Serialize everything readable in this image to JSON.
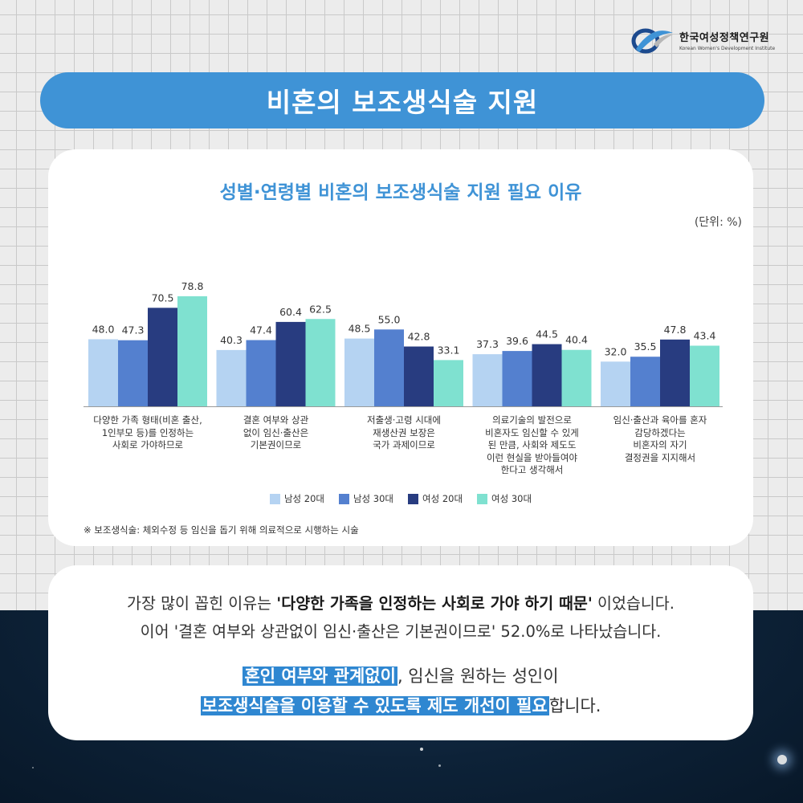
{
  "header": {
    "org_name_ko": "한국여성정책연구원",
    "org_name_en": "Korean Women's Development Institute",
    "banner_title": "비혼의 보조생식술 지원"
  },
  "chart_data": {
    "type": "bar",
    "title": "성별·연령별 비혼의 보조생식술 지원 필요 이유",
    "unit_label": "(단위: %)",
    "xlabel": "",
    "ylabel": "",
    "ylim": [
      0,
      100
    ],
    "grid": false,
    "legend_position": "bottom",
    "categories": [
      [
        "다양한 가족 형태(비혼 출산,",
        "1인부모 등)를 인정하는",
        "사회로 가야하므로"
      ],
      [
        "결혼 여부와 상관",
        "없이 임신·출산은",
        "기본권이므로"
      ],
      [
        "저출생·고령 시대에",
        "재생산권 보장은",
        "국가 과제이므로"
      ],
      [
        "의료기술의 발전으로",
        "비혼자도 임신할 수 있게",
        "된 만큼, 사회와 제도도",
        "이런 현실을 받아들여야",
        "한다고 생각해서"
      ],
      [
        "임신·출산과 육아를 혼자",
        "감당하겠다는",
        "비혼자의 자기",
        "결정권을 지지해서"
      ]
    ],
    "series": [
      {
        "name": "남성 20대",
        "color": "#b5d3f2",
        "values": [
          48.0,
          40.3,
          48.5,
          37.3,
          32.0
        ]
      },
      {
        "name": "남성 30대",
        "color": "#5480cf",
        "values": [
          47.3,
          47.4,
          55.0,
          39.6,
          35.5
        ]
      },
      {
        "name": "여성 20대",
        "color": "#283c80",
        "values": [
          70.5,
          60.4,
          42.8,
          44.5,
          47.8
        ]
      },
      {
        "name": "여성 30대",
        "color": "#7fe1d0",
        "values": [
          78.8,
          62.5,
          33.1,
          40.4,
          43.4
        ]
      }
    ],
    "footnote": "※ 보조생식술: 체외수정 등 임신을 돕기 위해 의료적으로 시행하는 시술"
  },
  "summary": {
    "line1_pre": "가장 많이 꼽힌 이유는 ",
    "line1_bold": "'다양한 가족을 인정하는 사회로 가야 하기 때문'",
    "line1_post": " 이었습니다.",
    "line2": "이어 '결혼 여부와 상관없이 임신·출산은 기본권이므로' 52.0%로 나타났습니다.",
    "line3_highlight": "혼인 여부와 관계없이",
    "line3_rest": ", 임신을 원하는 성인이",
    "line4_highlight": "보조생식술을 이용할 수 있도록 제도 개선이 필요",
    "line4_rest": "합니다."
  },
  "colors": {
    "banner": "#3f93d6",
    "highlight": "#2f87d1",
    "night_sky": "#0d2238"
  }
}
